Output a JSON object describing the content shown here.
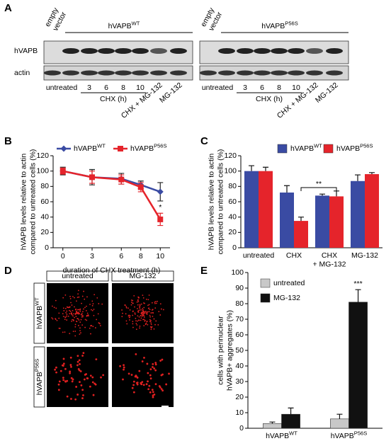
{
  "panel_labels": [
    "A",
    "B",
    "C",
    "D",
    "E"
  ],
  "panel_a": {
    "empty_vector": [
      "empty",
      "vector"
    ],
    "groups": [
      {
        "base": "hVAPB",
        "sup": "WT"
      },
      {
        "base": "hVAPB",
        "sup": "P56S"
      }
    ],
    "rows": [
      "hVAPB",
      "actin"
    ],
    "lanes": [
      "untreated",
      "3",
      "6",
      "8",
      "10",
      "CHX + MG-132",
      "MG-132"
    ],
    "chx_label": "CHX (h)"
  },
  "panel_d": {
    "columns": [
      "untreated",
      "MG-132"
    ],
    "rows": [
      {
        "base": "hVAPB",
        "sup": "WT"
      },
      {
        "base": "hVAPB",
        "sup": "P56S"
      }
    ]
  },
  "chart_data": [
    {
      "type": "line",
      "xlabel": "duration of CHX treatment (h)",
      "ylabel": [
        "hVAPB levels relative to actin",
        "compared to untreated cells (%)"
      ],
      "x": [
        0,
        3,
        6,
        8,
        10
      ],
      "xlim": [
        -1,
        11
      ],
      "xticks": [
        0,
        3,
        6,
        8,
        10
      ],
      "ylim": [
        0,
        120
      ],
      "yticks": [
        0,
        20,
        40,
        60,
        80,
        100,
        120
      ],
      "series": [
        {
          "name": {
            "base": "hVAPB",
            "sup": "WT"
          },
          "color": "#3a4ba3",
          "marker": "diamond",
          "values": [
            100,
            92,
            90,
            82,
            73
          ],
          "errors": [
            5,
            10,
            7,
            5,
            12
          ]
        },
        {
          "name": {
            "base": "hVAPB",
            "sup": "P56S"
          },
          "color": "#e5242b",
          "marker": "square",
          "values": [
            100,
            92,
            89,
            79,
            37
          ],
          "errors": [
            4,
            8,
            6,
            6,
            8
          ]
        }
      ],
      "annotation": "*"
    },
    {
      "type": "bar",
      "ylabel": [
        "hVAPB levels relative to actin",
        "compared to untreated cells (%)"
      ],
      "categories": [
        [
          "untreated"
        ],
        [
          "CHX"
        ],
        [
          "CHX",
          "+ MG-132"
        ],
        [
          "MG-132"
        ]
      ],
      "ylim": [
        0,
        120
      ],
      "yticks": [
        0,
        20,
        40,
        60,
        80,
        100,
        120
      ],
      "series": [
        {
          "name": {
            "base": "hVAPB",
            "sup": "WT"
          },
          "color": "#3a4ba3",
          "values": [
            100,
            72,
            68,
            87
          ],
          "errors": [
            7,
            9,
            2,
            8
          ]
        },
        {
          "name": {
            "base": "hVAPB",
            "sup": "P56S"
          },
          "color": "#e5242b",
          "values": [
            100,
            35,
            67,
            96
          ],
          "errors": [
            5,
            5,
            7,
            2
          ]
        }
      ],
      "annotation": "**"
    },
    {
      "type": "bar",
      "ylabel": [
        "cells with perinuclear",
        "hVAPB+ aggregates (%)"
      ],
      "categories": [
        {
          "base": "hVAPB",
          "sup": "WT"
        },
        {
          "base": "hVAPB",
          "sup": "P56S"
        }
      ],
      "ylim": [
        0,
        100
      ],
      "yticks": [
        0,
        10,
        20,
        30,
        40,
        50,
        60,
        70,
        80,
        90,
        100
      ],
      "series": [
        {
          "name": "untreated",
          "color": "#c8c8c8",
          "values": [
            3,
            6
          ],
          "errors": [
            1,
            3
          ]
        },
        {
          "name": "MG-132",
          "color": "#111111",
          "values": [
            9,
            81
          ],
          "errors": [
            4,
            8
          ]
        }
      ],
      "annotation": "***"
    }
  ]
}
